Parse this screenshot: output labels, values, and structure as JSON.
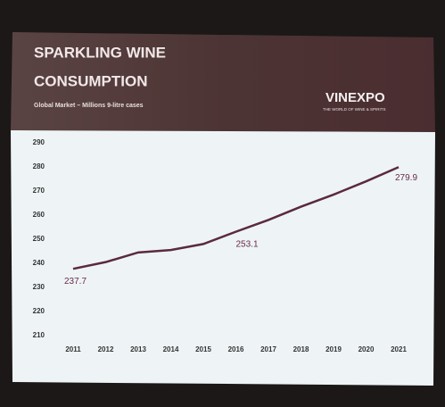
{
  "chart_data": {
    "type": "line",
    "title": "SPARKLING WINE CONSUMPTION",
    "subtitle": "Global Market – Millions 9-litre cases",
    "logo": "VINEXPO",
    "tagline": "THE WORLD OF WINE & SPIRITS",
    "categories": [
      "2011",
      "2012",
      "2013",
      "2014",
      "2015",
      "2016",
      "2017",
      "2018",
      "2019",
      "2020",
      "2021"
    ],
    "values": [
      237.7,
      240.5,
      244.5,
      245.5,
      248,
      253.1,
      258,
      263.5,
      268.5,
      274,
      279.9
    ],
    "value_labels": [
      "237.7",
      null,
      null,
      null,
      null,
      "253.1",
      null,
      null,
      null,
      null,
      "279.9"
    ],
    "color": "#5b2a3c",
    "ylim": [
      210,
      290
    ],
    "yticks": [
      210,
      220,
      230,
      240,
      250,
      260,
      270,
      280,
      290
    ],
    "grid": false
  }
}
